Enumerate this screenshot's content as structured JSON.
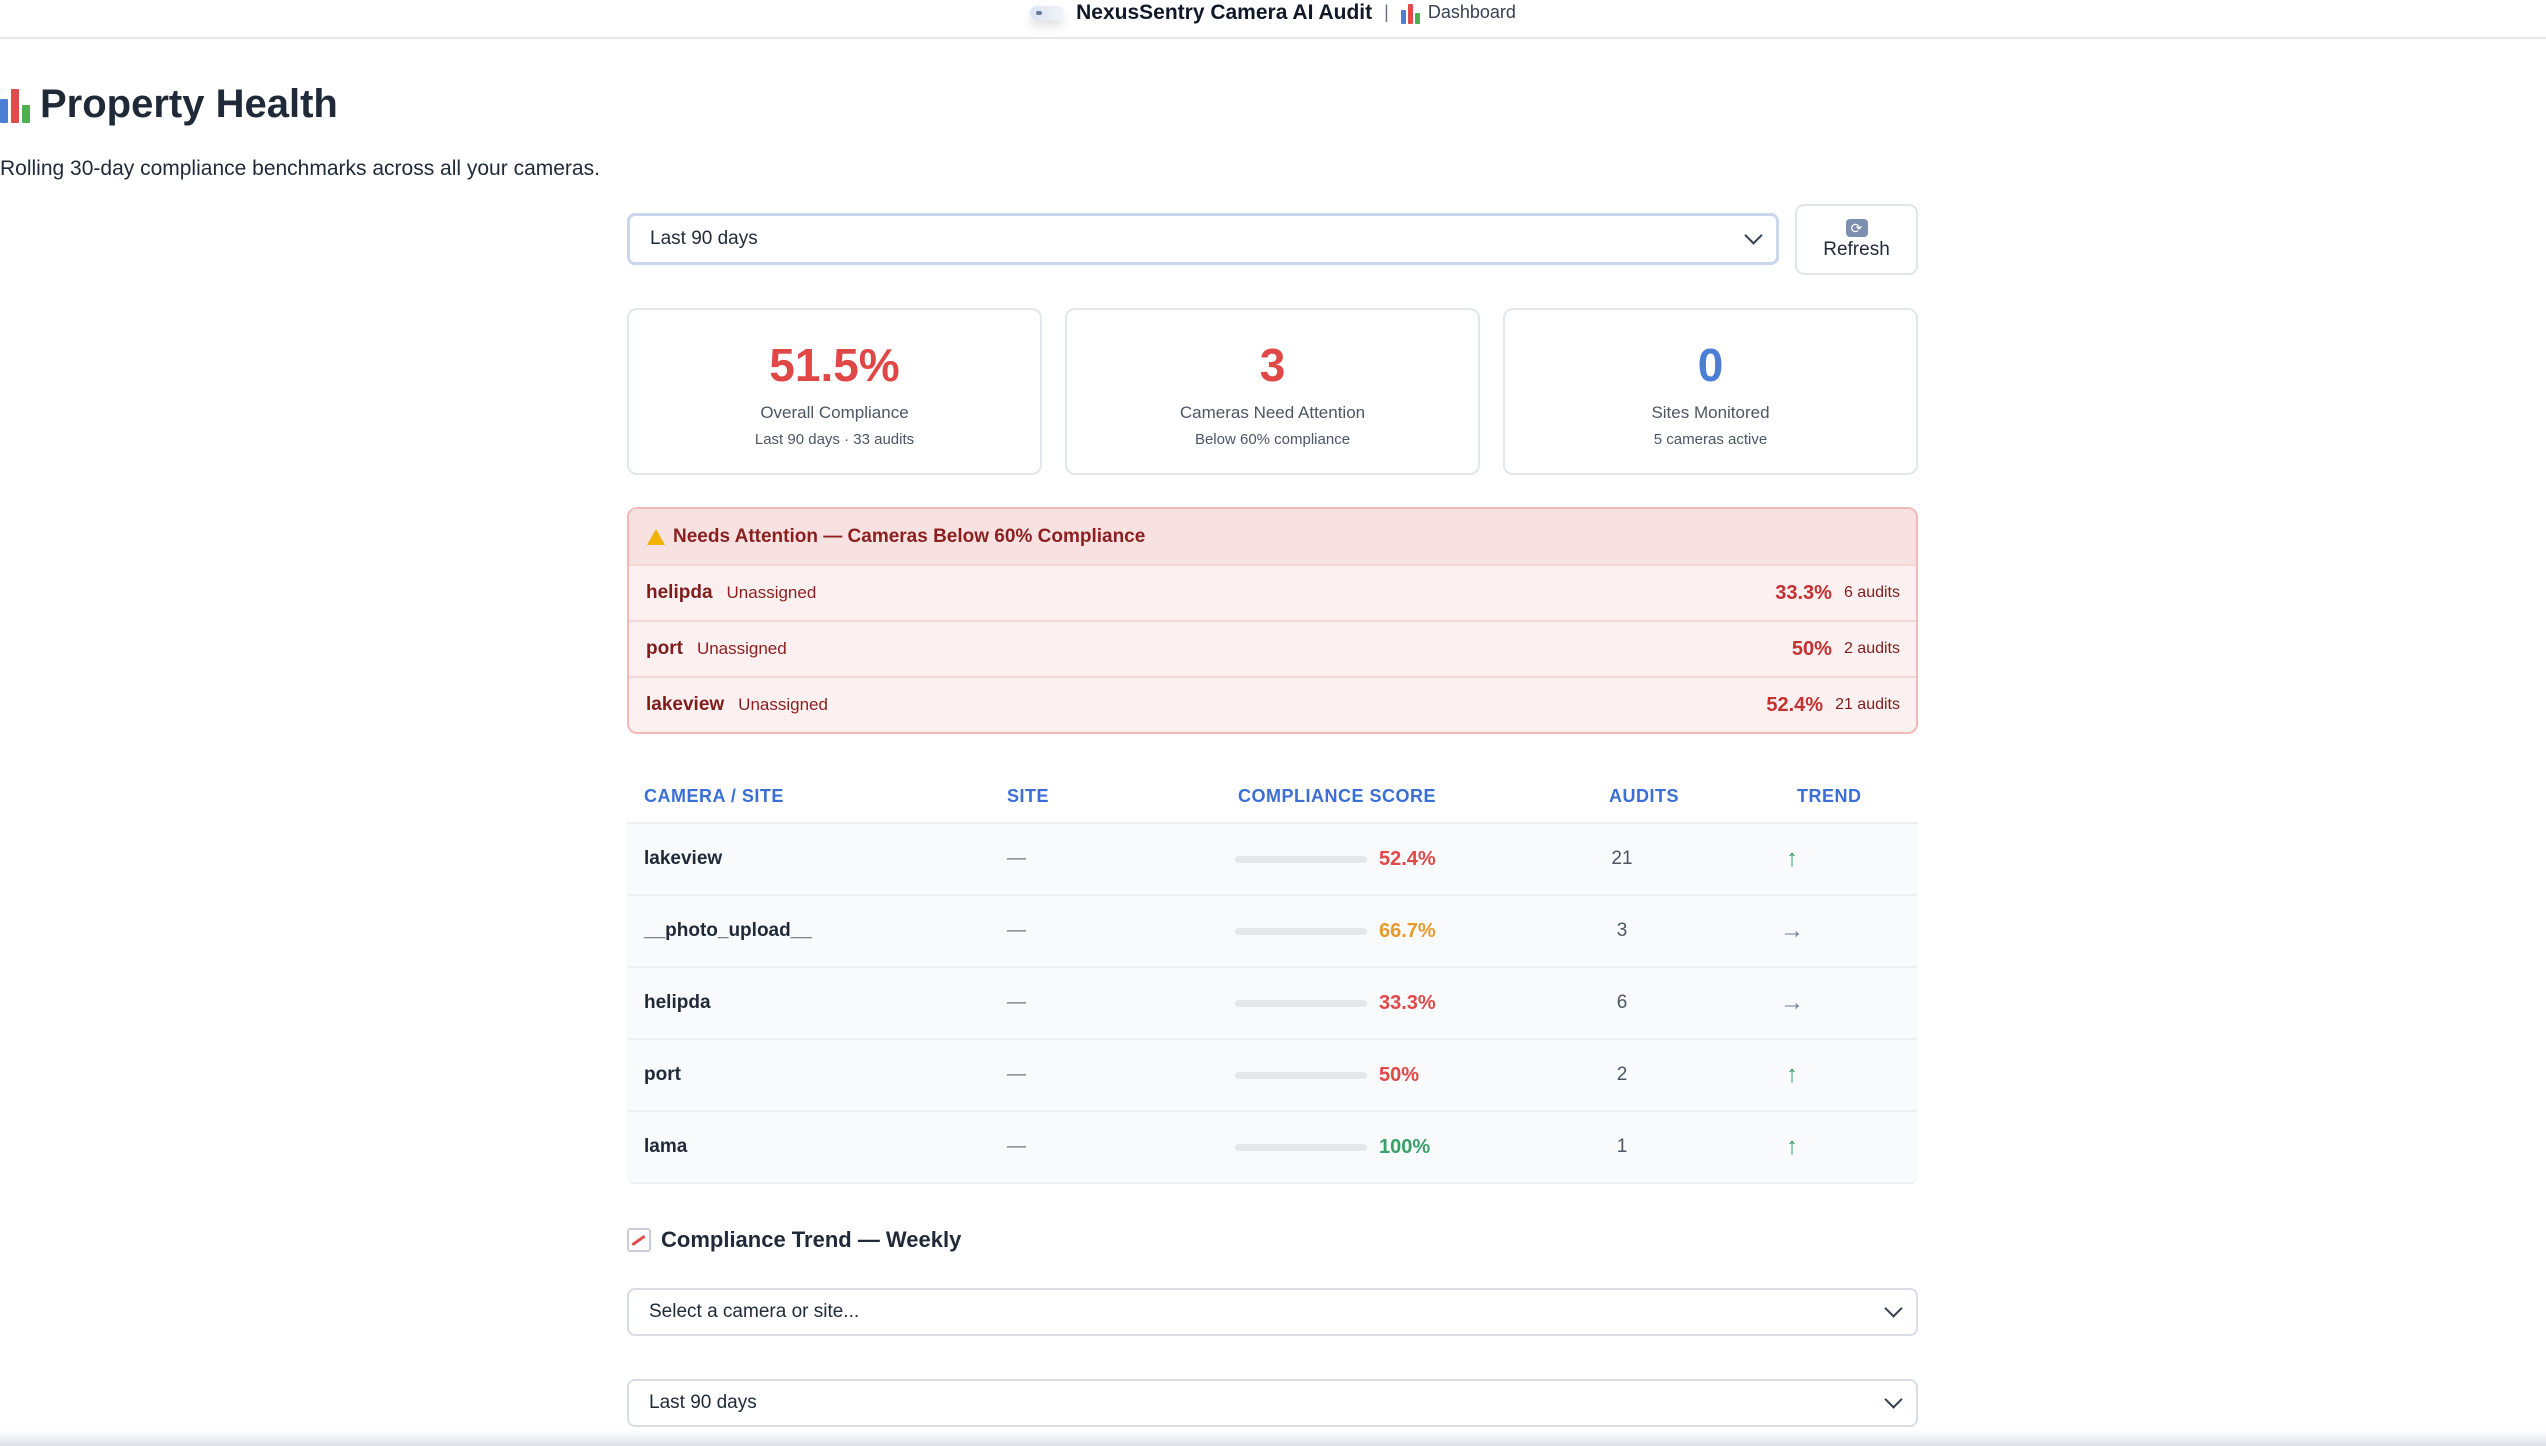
{
  "topbar": {
    "app_title": "NexusSentry Camera AI Audit",
    "separator": "|",
    "crumb": "Dashboard"
  },
  "page": {
    "title": "Property Health",
    "subtitle": "Rolling 30-day compliance benchmarks across all your cameras."
  },
  "filters": {
    "period_value": "Last 90 days",
    "refresh_label": "Refresh"
  },
  "stats": [
    {
      "value": "51.5%",
      "label": "Overall Compliance",
      "sub": "Last 90 days · 33 audits",
      "color": "#e04848"
    },
    {
      "value": "3",
      "label": "Cameras Need Attention",
      "sub": "Below 60% compliance",
      "color": "#e04848"
    },
    {
      "value": "0",
      "label": "Sites Monitored",
      "sub": "5 cameras active",
      "color": "#4a7fd4"
    }
  ],
  "attention": {
    "title": "Needs Attention — Cameras Below 60% Compliance",
    "rows": [
      {
        "name": "helipda",
        "site": "Unassigned",
        "score": "33.3%",
        "audits": "6 audits"
      },
      {
        "name": "port",
        "site": "Unassigned",
        "score": "50%",
        "audits": "2 audits"
      },
      {
        "name": "lakeview",
        "site": "Unassigned",
        "score": "52.4%",
        "audits": "21 audits"
      }
    ]
  },
  "table": {
    "headers": {
      "camera": "CAMERA / SITE",
      "site": "SITE",
      "score": "COMPLIANCE SCORE",
      "audits": "AUDITS",
      "trend": "TREND"
    },
    "rows": [
      {
        "camera": "lakeview",
        "site": "—",
        "score": "52.4%",
        "score_value": 52.4,
        "color": "#e04848",
        "audits": "21",
        "trend": "↑",
        "trend_color": "#38a169"
      },
      {
        "camera": "__photo_upload__",
        "site": "—",
        "score": "66.7%",
        "score_value": 66.7,
        "color": "#e89a2c",
        "audits": "3",
        "trend": "→",
        "trend_color": "#6b7c99"
      },
      {
        "camera": "helipda",
        "site": "—",
        "score": "33.3%",
        "score_value": 33.3,
        "color": "#e04848",
        "audits": "6",
        "trend": "→",
        "trend_color": "#6b7c99"
      },
      {
        "camera": "port",
        "site": "—",
        "score": "50%",
        "score_value": 50,
        "color": "#e04848",
        "audits": "2",
        "trend": "↑",
        "trend_color": "#38a169"
      },
      {
        "camera": "lama",
        "site": "—",
        "score": "100%",
        "score_value": 100,
        "color": "#38a169",
        "audits": "1",
        "trend": "↑",
        "trend_color": "#38a169"
      }
    ]
  },
  "trend_section": {
    "title": "Compliance Trend — Weekly",
    "camera_select_value": "Select a camera or site...",
    "period_select_value": "Last 90 days"
  },
  "icons": {
    "logo": "app-logo-icon",
    "chart": "bar-chart-icon",
    "refresh": "refresh-icon",
    "warning": "warning-icon",
    "trend": "line-chart-icon"
  }
}
